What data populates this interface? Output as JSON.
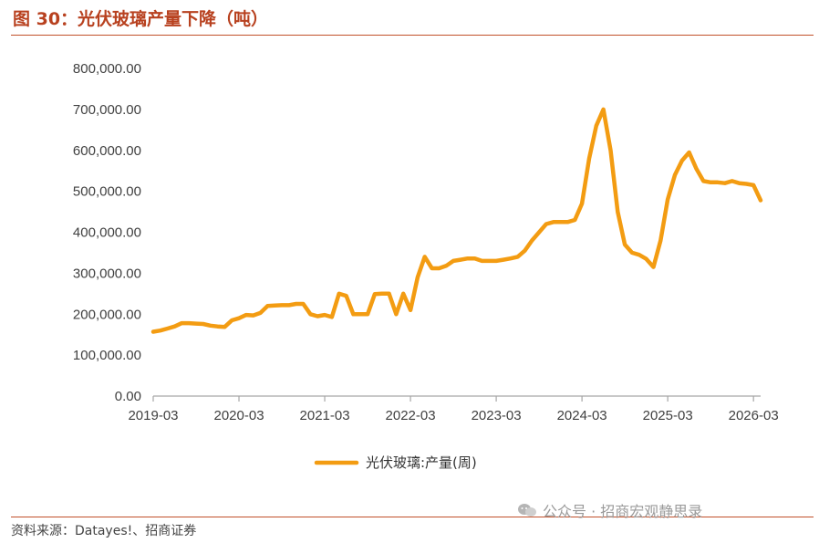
{
  "figure": {
    "title": "图 30：光伏玻璃产量下降（吨）",
    "source": "资料来源：Datayes!、招商证券",
    "watermark": "公众号 · 招商宏观静思录"
  },
  "colors": {
    "accent": "#b8411f",
    "rule": "#c1502a",
    "series": "#f39c12"
  },
  "chart_data": {
    "type": "line",
    "title": "",
    "xlabel": "",
    "ylabel": "",
    "ylim": [
      0,
      800000
    ],
    "yticks": [
      0,
      100000,
      200000,
      300000,
      400000,
      500000,
      600000,
      700000,
      800000
    ],
    "ytick_labels": [
      "0.00",
      "100,000.00",
      "200,000.00",
      "300,000.00",
      "400,000.00",
      "500,000.00",
      "600,000.00",
      "700,000.00",
      "800,000.00"
    ],
    "xlim": [
      "2019-03",
      "2026-04"
    ],
    "xticks": [
      "2019-03",
      "2020-03",
      "2021-03",
      "2022-03",
      "2023-03",
      "2024-03",
      "2025-03",
      "2026-03"
    ],
    "grid": false,
    "legend": "bottom",
    "series": [
      {
        "name": "光伏玻璃:产量(周)",
        "color": "#f39c12",
        "points": [
          [
            "2019-03",
            157000
          ],
          [
            "2019-04",
            160000
          ],
          [
            "2019-05",
            165000
          ],
          [
            "2019-06",
            170000
          ],
          [
            "2019-07",
            178000
          ],
          [
            "2019-08",
            178000
          ],
          [
            "2019-09",
            177000
          ],
          [
            "2019-10",
            176000
          ],
          [
            "2019-11",
            172000
          ],
          [
            "2019-12",
            170000
          ],
          [
            "2020-01",
            169000
          ],
          [
            "2020-02",
            185000
          ],
          [
            "2020-03",
            190000
          ],
          [
            "2020-04",
            198000
          ],
          [
            "2020-05",
            197000
          ],
          [
            "2020-06",
            203000
          ],
          [
            "2020-07",
            220000
          ],
          [
            "2020-08",
            221000
          ],
          [
            "2020-09",
            222000
          ],
          [
            "2020-10",
            222000
          ],
          [
            "2020-11",
            225000
          ],
          [
            "2020-12",
            225000
          ],
          [
            "2021-01",
            200000
          ],
          [
            "2021-02",
            195000
          ],
          [
            "2021-03",
            198000
          ],
          [
            "2021-04",
            193000
          ],
          [
            "2021-05",
            250000
          ],
          [
            "2021-06",
            245000
          ],
          [
            "2021-07",
            200000
          ],
          [
            "2021-08",
            200000
          ],
          [
            "2021-09",
            200000
          ],
          [
            "2021-10",
            249000
          ],
          [
            "2021-11",
            250000
          ],
          [
            "2021-12",
            250000
          ],
          [
            "2022-01",
            200000
          ],
          [
            "2022-02",
            250000
          ],
          [
            "2022-03",
            210000
          ],
          [
            "2022-04",
            290000
          ],
          [
            "2022-05",
            340000
          ],
          [
            "2022-06",
            312000
          ],
          [
            "2022-07",
            312000
          ],
          [
            "2022-08",
            318000
          ],
          [
            "2022-09",
            330000
          ],
          [
            "2022-10",
            333000
          ],
          [
            "2022-11",
            336000
          ],
          [
            "2022-12",
            336000
          ],
          [
            "2023-01",
            330000
          ],
          [
            "2023-02",
            330000
          ],
          [
            "2023-03",
            330000
          ],
          [
            "2023-04",
            333000
          ],
          [
            "2023-05",
            336000
          ],
          [
            "2023-06",
            340000
          ],
          [
            "2023-07",
            355000
          ],
          [
            "2023-08",
            380000
          ],
          [
            "2023-09",
            400000
          ],
          [
            "2023-10",
            420000
          ],
          [
            "2023-11",
            425000
          ],
          [
            "2023-12",
            425000
          ],
          [
            "2024-01",
            425000
          ],
          [
            "2024-02",
            430000
          ],
          [
            "2024-03",
            470000
          ],
          [
            "2024-04",
            580000
          ],
          [
            "2024-05",
            660000
          ],
          [
            "2024-06",
            700000
          ],
          [
            "2024-07",
            600000
          ],
          [
            "2024-08",
            450000
          ],
          [
            "2024-09",
            370000
          ],
          [
            "2024-10",
            350000
          ],
          [
            "2024-11",
            345000
          ],
          [
            "2024-12",
            335000
          ],
          [
            "2025-01",
            315000
          ],
          [
            "2025-02",
            380000
          ],
          [
            "2025-03",
            480000
          ],
          [
            "2025-04",
            540000
          ],
          [
            "2025-05",
            575000
          ],
          [
            "2025-06",
            595000
          ],
          [
            "2025-07",
            555000
          ],
          [
            "2025-08",
            525000
          ],
          [
            "2025-09",
            522000
          ],
          [
            "2025-10",
            522000
          ],
          [
            "2025-11",
            520000
          ],
          [
            "2025-12",
            525000
          ],
          [
            "2026-01",
            520000
          ],
          [
            "2026-02",
            518000
          ],
          [
            "2026-03",
            515000
          ],
          [
            "2026-04",
            478000
          ]
        ]
      }
    ]
  }
}
